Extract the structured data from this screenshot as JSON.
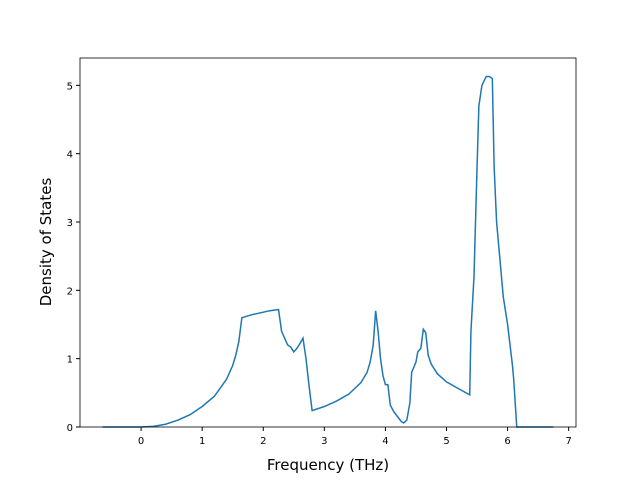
{
  "chart_data": {
    "type": "line",
    "xlabel": "Frequency (THz)",
    "ylabel": "Density of States",
    "x": [
      -0.63,
      0,
      0.2,
      0.4,
      0.6,
      0.8,
      1.0,
      1.2,
      1.4,
      1.5,
      1.55,
      1.6,
      1.65,
      1.8,
      2.0,
      2.1,
      2.25,
      2.3,
      2.35,
      2.4,
      2.45,
      2.5,
      2.55,
      2.6,
      2.65,
      2.7,
      2.75,
      2.8,
      3.0,
      3.2,
      3.4,
      3.6,
      3.7,
      3.75,
      3.8,
      3.84,
      3.88,
      3.92,
      3.96,
      4.0,
      4.04,
      4.08,
      4.14,
      4.2,
      4.26,
      4.3,
      4.35,
      4.4,
      4.43,
      4.5,
      4.53,
      4.58,
      4.62,
      4.66,
      4.7,
      4.75,
      4.85,
      5.0,
      5.2,
      5.38,
      5.4,
      5.45,
      5.5,
      5.53,
      5.58,
      5.65,
      5.7,
      5.75,
      5.78,
      5.82,
      5.87,
      5.93,
      6.0,
      6.08,
      6.1,
      6.15,
      6.75
    ],
    "series": [
      {
        "name": "DOS",
        "color": "#1f77b4",
        "values": [
          0,
          0,
          0.01,
          0.04,
          0.1,
          0.18,
          0.3,
          0.45,
          0.7,
          0.9,
          1.05,
          1.25,
          1.6,
          1.64,
          1.68,
          1.7,
          1.72,
          1.4,
          1.3,
          1.2,
          1.17,
          1.1,
          1.15,
          1.22,
          1.3,
          1.0,
          0.6,
          0.24,
          0.3,
          0.38,
          0.48,
          0.65,
          0.8,
          0.95,
          1.2,
          1.7,
          1.4,
          1.0,
          0.75,
          0.62,
          0.62,
          0.32,
          0.22,
          0.15,
          0.08,
          0.06,
          0.1,
          0.35,
          0.8,
          0.95,
          1.1,
          1.15,
          1.43,
          1.38,
          1.05,
          0.92,
          0.78,
          0.66,
          0.56,
          0.47,
          1.4,
          2.2,
          3.8,
          4.7,
          5.0,
          5.13,
          5.13,
          5.1,
          3.8,
          3.0,
          2.5,
          1.9,
          1.5,
          0.9,
          0.7,
          0,
          0
        ]
      }
    ],
    "xlim": [
      -1.0,
      7.12
    ],
    "xticks": [
      0,
      1,
      2,
      3,
      4,
      5,
      6,
      7
    ],
    "ylim": [
      0,
      5.4
    ],
    "yticks": [
      0,
      1,
      2,
      3,
      4,
      5
    ]
  }
}
